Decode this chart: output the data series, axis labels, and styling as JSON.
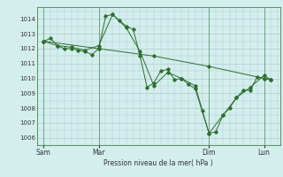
{
  "background_color": "#d4eeee",
  "grid_color": "#aacccc",
  "line_color": "#2d6e2d",
  "xlabel": "Pression niveau de la mer( hPa )",
  "ylim": [
    1005.5,
    1014.8
  ],
  "yticks": [
    1006,
    1007,
    1008,
    1009,
    1010,
    1011,
    1012,
    1013,
    1014
  ],
  "xtick_labels": [
    "Sam",
    "Mar",
    "Dim",
    "Lun"
  ],
  "xtick_positions": [
    0,
    24,
    72,
    96
  ],
  "xlim": [
    -3,
    103
  ],
  "vlines": [
    0,
    24,
    72,
    96
  ],
  "series": [
    [
      0,
      1012.5,
      3,
      1012.7,
      6,
      1012.2,
      9,
      1012.0,
      12,
      1012.0,
      15,
      1011.9,
      18,
      1011.8,
      21,
      1011.6,
      24,
      1012.0,
      27,
      1014.2,
      30,
      1014.3,
      33,
      1013.9,
      36,
      1013.5,
      39,
      1013.3,
      42,
      1011.5,
      45,
      1009.4,
      48,
      1009.7,
      51,
      1010.5,
      54,
      1010.6,
      57,
      1009.9,
      60,
      1010.0,
      63,
      1009.6,
      66,
      1009.3,
      69,
      1007.8,
      72,
      1006.3,
      75,
      1006.4,
      78,
      1007.5,
      81,
      1008.0,
      84,
      1008.7,
      87,
      1009.2,
      90,
      1009.2,
      93,
      1010.1,
      96,
      1010.0,
      99,
      1009.9
    ],
    [
      0,
      1012.5,
      6,
      1012.2,
      12,
      1012.1,
      18,
      1011.9,
      24,
      1012.2,
      30,
      1014.3,
      36,
      1013.4,
      42,
      1011.8,
      48,
      1009.5,
      54,
      1010.4,
      60,
      1010.0,
      66,
      1009.5,
      72,
      1006.3,
      78,
      1007.5,
      84,
      1008.7,
      90,
      1009.4,
      96,
      1010.2,
      99,
      1009.9
    ],
    [
      0,
      1012.5,
      24,
      1012.0,
      48,
      1011.5,
      72,
      1010.8,
      96,
      1010.0,
      99,
      1009.9
    ]
  ]
}
